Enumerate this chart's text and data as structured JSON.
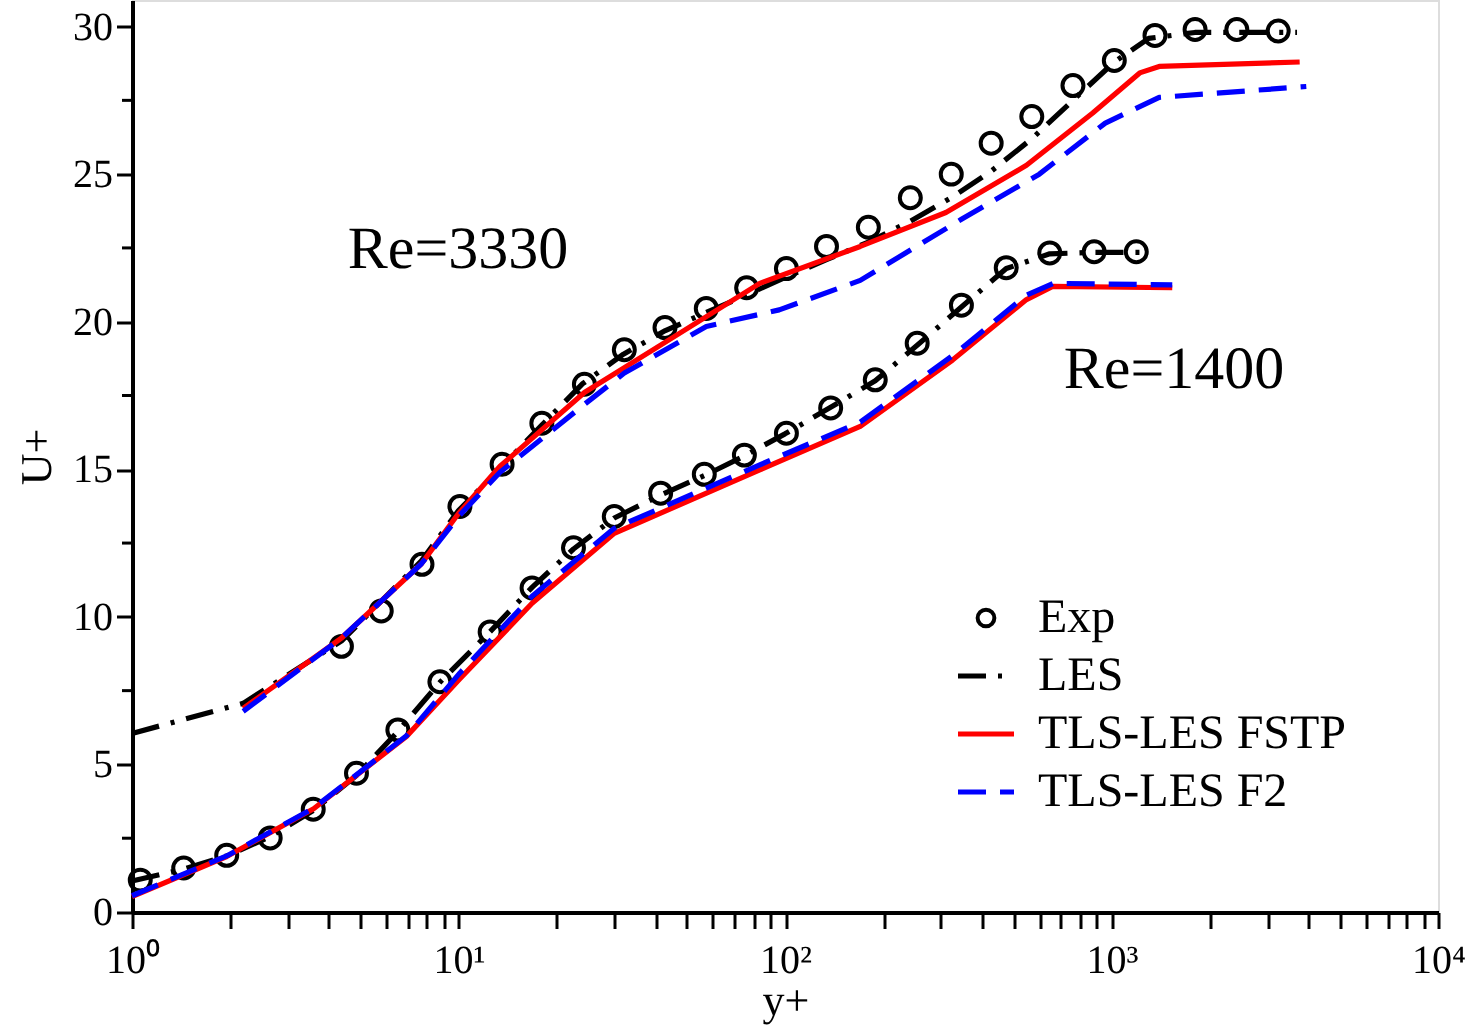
{
  "chart_data": {
    "type": "line",
    "xlabel": "y+",
    "ylabel": "U+",
    "log": "x",
    "grid": false,
    "legend": "bottom right",
    "xlim": [
      1,
      10000
    ],
    "ylim": [
      0,
      30.9
    ],
    "xticks": [
      {
        "value": 1,
        "label": "10⁰"
      },
      {
        "value": 2,
        "label": null
      },
      {
        "value": 3,
        "label": null
      },
      {
        "value": 4,
        "label": null
      },
      {
        "value": 5,
        "label": null
      },
      {
        "value": 6,
        "label": null
      },
      {
        "value": 7,
        "label": null
      },
      {
        "value": 8,
        "label": null
      },
      {
        "value": 9,
        "label": null
      },
      {
        "value": 10,
        "label": "10¹"
      },
      {
        "value": 20,
        "label": null
      },
      {
        "value": 30,
        "label": null
      },
      {
        "value": 40,
        "label": null
      },
      {
        "value": 50,
        "label": null
      },
      {
        "value": 60,
        "label": null
      },
      {
        "value": 70,
        "label": null
      },
      {
        "value": 80,
        "label": null
      },
      {
        "value": 90,
        "label": null
      },
      {
        "value": 100,
        "label": "10²"
      },
      {
        "value": 200,
        "label": null
      },
      {
        "value": 300,
        "label": null
      },
      {
        "value": 400,
        "label": null
      },
      {
        "value": 500,
        "label": null
      },
      {
        "value": 600,
        "label": null
      },
      {
        "value": 700,
        "label": null
      },
      {
        "value": 800,
        "label": null
      },
      {
        "value": 900,
        "label": null
      },
      {
        "value": 1000,
        "label": "10³"
      },
      {
        "value": 2000,
        "label": null
      },
      {
        "value": 3000,
        "label": null
      },
      {
        "value": 4000,
        "label": null
      },
      {
        "value": 5000,
        "label": null
      },
      {
        "value": 6000,
        "label": null
      },
      {
        "value": 7000,
        "label": null
      },
      {
        "value": 8000,
        "label": null
      },
      {
        "value": 9000,
        "label": null
      },
      {
        "value": 10000,
        "label": "10⁴"
      }
    ],
    "yticks": [
      0,
      {
        "value": 2.5,
        "label": null
      },
      5,
      {
        "value": 7.5,
        "label": null
      },
      10,
      {
        "value": 12.5,
        "label": null
      },
      15,
      {
        "value": 17.5,
        "label": null
      },
      20,
      {
        "value": 22.5,
        "label": null
      },
      25,
      {
        "value": 27.5,
        "label": null
      },
      30
    ],
    "annotations": [
      "Re=3330",
      "Re=1400"
    ],
    "series": [
      {
        "name": "Exp",
        "type": "scatter",
        "marker": "circle",
        "color": "#000000",
        "x": [
          4.38,
          5.8,
          7.73,
          10.1,
          13.6,
          18.0,
          24.3,
          32.2,
          42.9,
          57.4,
          76.3,
          101,
          134,
          180,
          242,
          323,
          428,
          570,
          762,
          1020,
          1359,
          1803,
          2420,
          3240
        ],
        "values": [
          9.0,
          10.2,
          11.78,
          13.74,
          15.17,
          16.56,
          17.88,
          19.05,
          19.8,
          20.45,
          21.15,
          21.8,
          22.55,
          23.2,
          24.2,
          25.0,
          26.05,
          26.95,
          28.0,
          28.85,
          29.7,
          29.9,
          29.9,
          29.85
        ]
      },
      {
        "name": "LES",
        "line_style": "dashdot",
        "color": "#000000",
        "x": [
          1,
          2.19,
          4.4,
          7.7,
          10,
          13.6,
          18,
          24,
          32,
          43,
          57,
          76,
          100,
          134,
          180,
          242,
          323,
          428,
          570,
          762,
          1020,
          1300,
          1800,
          3700
        ],
        "values": [
          6.05,
          7.07,
          9.2,
          11.9,
          13.6,
          15.1,
          16.5,
          17.9,
          18.9,
          19.7,
          20.3,
          20.9,
          21.5,
          22.1,
          22.7,
          23.4,
          24.2,
          25.1,
          26.2,
          27.5,
          28.8,
          29.6,
          29.8,
          29.8
        ]
      },
      {
        "name": "TLS-LES FSTP",
        "line_style": "solid",
        "color": "#ff0000",
        "x": [
          2.19,
          4.4,
          7.7,
          10,
          13.4,
          24.3,
          42.9,
          83.7,
          170,
          311,
          549,
          876,
          1220,
          1400,
          3770
        ],
        "values": [
          6.9,
          9.3,
          11.8,
          13.5,
          15.1,
          17.6,
          19.3,
          21.3,
          22.55,
          23.7,
          25.3,
          27.07,
          28.43,
          28.65,
          28.8
        ]
      },
      {
        "name": "TLS-LES F2",
        "line_style": "dashed",
        "color": "#0000ff",
        "x": [
          2.19,
          4.4,
          7.7,
          10,
          13.4,
          24.3,
          32.2,
          57.4,
          96,
          170,
          346,
          601,
          957,
          1400,
          3950
        ],
        "values": [
          6.8,
          9.3,
          11.8,
          13.4,
          14.9,
          17.2,
          18.26,
          19.84,
          20.4,
          21.4,
          23.46,
          25.0,
          26.73,
          27.6,
          27.97
        ]
      },
      {
        "type": "scatter",
        "marker": "circle",
        "color": "#000000",
        "x": [
          1.06,
          1.44,
          1.95,
          2.65,
          3.59,
          4.87,
          6.52,
          8.77,
          12.5,
          16.8,
          22.5,
          30.0,
          41.6,
          56.6,
          75.1,
          101,
          138,
          189,
          254,
          347,
          476,
          647,
          885,
          1191
        ],
        "values": [
          1.08,
          1.49,
          1.92,
          2.51,
          3.48,
          4.7,
          6.17,
          7.8,
          9.49,
          10.98,
          12.34,
          13.4,
          14.19,
          14.83,
          15.48,
          16.22,
          17.08,
          18.03,
          19.27,
          20.56,
          21.83,
          22.33,
          22.37,
          22.37
        ]
      },
      {
        "line_style": "dashdot",
        "color": "#000000",
        "x": [
          1,
          1.44,
          1.95,
          2.65,
          3.6,
          4.9,
          6.5,
          8.8,
          12.5,
          16.8,
          22.5,
          30,
          42,
          57,
          75,
          100,
          138,
          189,
          254,
          347,
          476,
          647,
          885,
          1260
        ],
        "values": [
          1.05,
          1.45,
          1.9,
          2.55,
          3.45,
          4.65,
          6.1,
          7.8,
          9.5,
          11.0,
          12.3,
          13.35,
          14.15,
          14.8,
          15.45,
          16.2,
          17.1,
          18.0,
          19.2,
          20.5,
          21.8,
          22.3,
          22.35,
          22.35
        ]
      },
      {
        "line_style": "solid",
        "color": "#ff0000",
        "x": [
          1,
          1.95,
          3.6,
          6.93,
          10.1,
          16.8,
          30,
          83.7,
          170,
          326,
          549,
          663,
          1535
        ],
        "values": [
          0.52,
          1.88,
          3.5,
          5.95,
          7.9,
          10.46,
          12.83,
          14.98,
          16.45,
          18.7,
          20.75,
          21.2,
          21.15
        ]
      },
      {
        "line_style": "dashed",
        "color": "#0000ff",
        "x": [
          1,
          1.95,
          3.6,
          6.93,
          10.1,
          16.8,
          30,
          83.7,
          170,
          326,
          549,
          663,
          1535
        ],
        "values": [
          0.55,
          1.9,
          3.52,
          5.97,
          8.1,
          10.7,
          13.0,
          15.15,
          16.6,
          18.85,
          20.9,
          21.3,
          21.25
        ]
      }
    ]
  }
}
